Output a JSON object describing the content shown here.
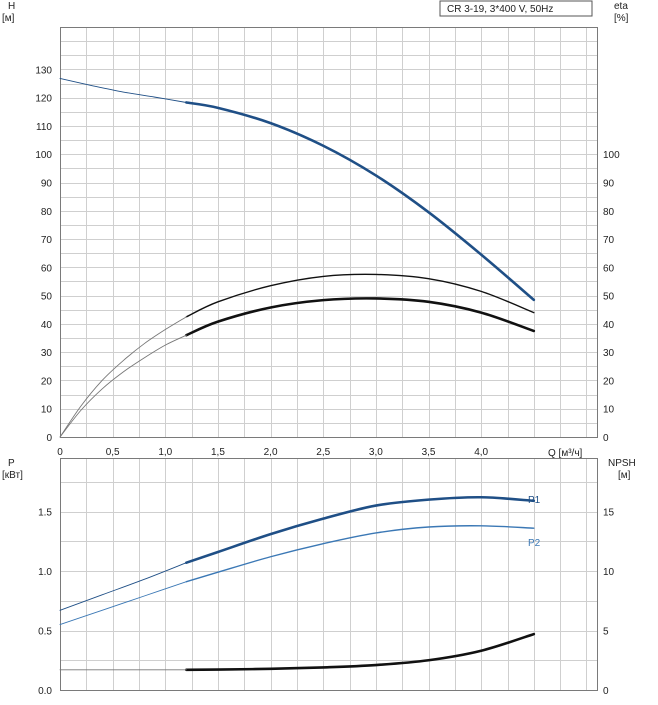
{
  "legend_box": {
    "text": "CR 3-19, 3*400 V, 50Hz"
  },
  "colors": {
    "blue": "#1f4f86",
    "light_blue": "#3b78b5",
    "black": "#111111",
    "thin": "#777777"
  },
  "chart_data": [
    {
      "type": "line",
      "panel": "head-efficiency",
      "ylabel_left": "H",
      "yunit_left": "[м]",
      "ylabel_right": "eta",
      "yunit_right": "[%]",
      "xlabel": "Q [м³/ч]",
      "xlim": [
        0,
        5.1
      ],
      "ylim_left": [
        0,
        145
      ],
      "ylim_right": [
        0,
        145
      ],
      "x_ticks": [
        0,
        0.5,
        1.0,
        1.5,
        2.0,
        2.5,
        3.0,
        3.5,
        4.0
      ],
      "x_tick_labels": [
        "0",
        "0,5",
        "1,0",
        "1,5",
        "2,0",
        "2,5",
        "3,0",
        "3,5",
        "4,0"
      ],
      "y_ticks_left": [
        0,
        10,
        20,
        30,
        40,
        50,
        60,
        70,
        80,
        90,
        100,
        110,
        120,
        130
      ],
      "y_ticks_right": [
        0,
        10,
        20,
        30,
        40,
        50,
        60,
        70,
        80,
        90,
        100
      ],
      "grid": true,
      "series": [
        {
          "id": "H",
          "axis": "left",
          "style": "blue-thick",
          "x": [
            1.2,
            1.5,
            2.0,
            2.5,
            3.0,
            3.5,
            4.0,
            4.5
          ],
          "values": [
            118.3,
            116.4,
            111.0,
            103.0,
            92.5,
            79.5,
            64.5,
            48.5
          ]
        },
        {
          "id": "H-extension",
          "axis": "left",
          "style": "blue-thin",
          "x": [
            0,
            0.3,
            0.6,
            0.9,
            1.2
          ],
          "values": [
            126.8,
            124.3,
            122.0,
            120.2,
            118.3
          ]
        },
        {
          "id": "eta",
          "axis": "right",
          "style": "black-medium",
          "x": [
            1.2,
            1.5,
            2.0,
            2.5,
            3.0,
            3.5,
            4.0,
            4.5
          ],
          "values": [
            42.5,
            47.8,
            53.5,
            56.8,
            57.5,
            56.0,
            51.5,
            44.0
          ]
        },
        {
          "id": "eta-extension",
          "axis": "right",
          "style": "gray-thin",
          "x": [
            0,
            0.2,
            0.4,
            0.6,
            0.8,
            1.0,
            1.2
          ],
          "values": [
            0,
            11.0,
            20.0,
            27.0,
            33.0,
            38.0,
            42.5
          ]
        },
        {
          "id": "eta-total",
          "axis": "right",
          "style": "black-thick",
          "x": [
            1.2,
            1.5,
            2.0,
            2.5,
            3.0,
            3.5,
            4.0,
            4.5
          ],
          "values": [
            36.0,
            40.8,
            45.8,
            48.4,
            49.0,
            47.8,
            44.0,
            37.5
          ]
        },
        {
          "id": "eta-total-extension",
          "axis": "right",
          "style": "gray-thin",
          "x": [
            0,
            0.2,
            0.4,
            0.6,
            0.8,
            1.0,
            1.2
          ],
          "values": [
            0,
            9.5,
            17.0,
            23.0,
            28.0,
            32.5,
            36.0
          ]
        }
      ]
    },
    {
      "type": "line",
      "panel": "power-npsh",
      "ylabel_left": "P",
      "yunit_left": "[кВт]",
      "ylabel_right": "NPSH",
      "yunit_right": "[м]",
      "xlim": [
        0,
        5.1
      ],
      "ylim_left": [
        0,
        1.95
      ],
      "ylim_right": [
        0,
        19.5
      ],
      "y_ticks_left": [
        0.0,
        0.5,
        1.0,
        1.5
      ],
      "y_tick_labels_left": [
        "0.0",
        "0.5",
        "1.0",
        "1.5"
      ],
      "y_ticks_right": [
        0,
        5,
        10,
        15
      ],
      "grid": true,
      "series": [
        {
          "id": "P1",
          "name": "P1",
          "axis": "left",
          "style": "blue-thick",
          "x": [
            1.2,
            1.5,
            2.0,
            2.5,
            3.0,
            3.5,
            4.0,
            4.5
          ],
          "values": [
            1.07,
            1.16,
            1.31,
            1.44,
            1.55,
            1.6,
            1.62,
            1.59
          ]
        },
        {
          "id": "P1-extension",
          "axis": "left",
          "style": "blue-thin",
          "x": [
            0,
            0.4,
            0.8,
            1.2
          ],
          "values": [
            0.67,
            0.8,
            0.93,
            1.07
          ]
        },
        {
          "id": "P2",
          "name": "P2",
          "axis": "left",
          "style": "light-blue",
          "x": [
            1.2,
            1.5,
            2.0,
            2.5,
            3.0,
            3.5,
            4.0,
            4.5
          ],
          "values": [
            0.91,
            0.99,
            1.12,
            1.23,
            1.32,
            1.37,
            1.38,
            1.36
          ]
        },
        {
          "id": "P2-extension",
          "axis": "left",
          "style": "light-blue-thin",
          "x": [
            0,
            0.4,
            0.8,
            1.2
          ],
          "values": [
            0.55,
            0.67,
            0.79,
            0.91
          ]
        },
        {
          "id": "NPSH",
          "axis": "right",
          "style": "black-thick",
          "x": [
            1.2,
            1.5,
            2.0,
            2.5,
            3.0,
            3.5,
            4.0,
            4.5
          ],
          "values": [
            1.7,
            1.72,
            1.78,
            1.9,
            2.1,
            2.5,
            3.3,
            4.7
          ]
        },
        {
          "id": "NPSH-extension",
          "axis": "right",
          "style": "gray-thin",
          "x": [
            0,
            1.2
          ],
          "values": [
            1.7,
            1.7
          ]
        }
      ]
    }
  ]
}
